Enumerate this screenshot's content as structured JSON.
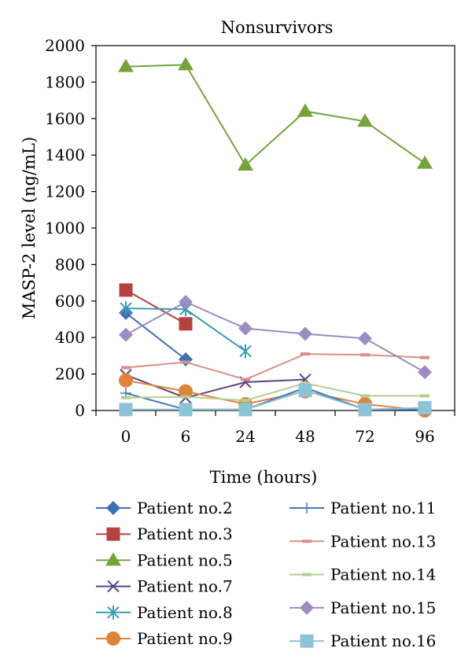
{
  "chart_data": {
    "type": "line",
    "title": "Nonsurvivors",
    "xlabel": "Time (hours)",
    "ylabel": "MASP-2 level (ng/mL)",
    "categories": [
      "0",
      "6",
      "24",
      "48",
      "72",
      "96"
    ],
    "ylim": [
      0,
      2000
    ],
    "yticks": [
      0,
      200,
      400,
      600,
      800,
      1000,
      1200,
      1400,
      1600,
      1800,
      2000
    ],
    "grid": false,
    "legend_position": "bottom",
    "series": [
      {
        "name": "Patient no.2",
        "color": "#3e6fb0",
        "marker": "diamond",
        "values": [
          535,
          280,
          null,
          null,
          null,
          null
        ]
      },
      {
        "name": "Patient no.3",
        "color": "#b54240",
        "marker": "square",
        "values": [
          660,
          475,
          null,
          null,
          null,
          null
        ]
      },
      {
        "name": "Patient no.5",
        "color": "#77a33c",
        "marker": "triangle",
        "values": [
          1885,
          1895,
          1345,
          1640,
          1585,
          1355
        ]
      },
      {
        "name": "Patient no.7",
        "color": "#5c4383",
        "marker": "x",
        "values": [
          195,
          70,
          155,
          170,
          null,
          null
        ]
      },
      {
        "name": "Patient no.8",
        "color": "#3a9bb4",
        "marker": "star",
        "values": [
          560,
          555,
          325,
          null,
          null,
          null
        ]
      },
      {
        "name": "Patient no.9",
        "color": "#e0823a",
        "marker": "circle",
        "values": [
          165,
          105,
          35,
          105,
          35,
          0
        ]
      },
      {
        "name": "Patient no.11",
        "color": "#4a78b8",
        "marker": "plus",
        "values": [
          95,
          5,
          5,
          125,
          5,
          5
        ]
      },
      {
        "name": "Patient no.13",
        "color": "#d98f8c",
        "marker": "dash",
        "values": [
          235,
          265,
          170,
          310,
          305,
          290
        ]
      },
      {
        "name": "Patient no.14",
        "color": "#b3cf8f",
        "marker": "dash",
        "values": [
          70,
          75,
          55,
          150,
          80,
          80
        ]
      },
      {
        "name": "Patient no.15",
        "color": "#9d8cc1",
        "marker": "diamond",
        "values": [
          415,
          595,
          450,
          420,
          395,
          210
        ]
      },
      {
        "name": "Patient no.16",
        "color": "#8dc3d6",
        "marker": "square",
        "values": [
          5,
          5,
          5,
          110,
          5,
          15
        ]
      }
    ]
  }
}
